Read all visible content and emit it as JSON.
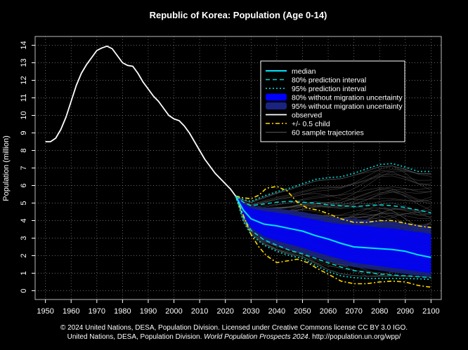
{
  "chart_data": {
    "type": "line",
    "title": "Republic of Korea: Population (Age 0-14)",
    "xlabel": "",
    "ylabel": "Population (million)",
    "xlim": [
      1946,
      2104
    ],
    "ylim": [
      -0.5,
      14.5
    ],
    "x_ticks": [
      1950,
      1960,
      1970,
      1980,
      1990,
      2000,
      2010,
      2020,
      2030,
      2040,
      2050,
      2060,
      2070,
      2080,
      2090,
      2100
    ],
    "y_ticks": [
      0,
      1,
      2,
      3,
      4,
      5,
      6,
      7,
      8,
      9,
      10,
      11,
      12,
      13,
      14
    ],
    "grid": true,
    "legend_position": "top-right",
    "legend": [
      {
        "key": "median",
        "label": "median"
      },
      {
        "key": "pi80",
        "label": "80% prediction interval"
      },
      {
        "key": "pi95",
        "label": "95% prediction interval"
      },
      {
        "key": "nomig80",
        "label": "80% without migration uncertainty"
      },
      {
        "key": "nomig95",
        "label": "95% without migration uncertainty"
      },
      {
        "key": "observed",
        "label": "observed"
      },
      {
        "key": "halfchild",
        "label": "+/- 0.5 child"
      },
      {
        "key": "samples",
        "label": "60 sample trajectories"
      }
    ],
    "colors": {
      "observed": "#ffffff",
      "median": "#00e5ff",
      "pi80": "#00cccc",
      "pi95": "#00cccc",
      "band80": "#0000ff",
      "band95": "#1a237e",
      "halfchild": "#ffd700",
      "samples": "#555555",
      "grid": "#888888"
    },
    "series": [
      {
        "name": "observed",
        "x": [
          1950,
          1952,
          1954,
          1956,
          1958,
          1960,
          1962,
          1964,
          1966,
          1968,
          1970,
          1972,
          1974,
          1976,
          1978,
          1980,
          1982,
          1984,
          1986,
          1988,
          1990,
          1992,
          1994,
          1996,
          1998,
          2000,
          2002,
          2004,
          2006,
          2008,
          2010,
          2012,
          2014,
          2016,
          2018,
          2020,
          2022,
          2024
        ],
        "values": [
          8.5,
          8.5,
          8.7,
          9.2,
          9.9,
          10.8,
          11.7,
          12.4,
          12.9,
          13.3,
          13.7,
          13.85,
          13.95,
          13.8,
          13.4,
          13.0,
          12.85,
          12.8,
          12.4,
          11.9,
          11.5,
          11.1,
          10.8,
          10.4,
          10.0,
          9.8,
          9.7,
          9.4,
          9.0,
          8.5,
          8.0,
          7.5,
          7.1,
          6.7,
          6.4,
          6.1,
          5.8,
          5.4
        ]
      },
      {
        "name": "median",
        "x": [
          2024,
          2027,
          2030,
          2035,
          2040,
          2045,
          2050,
          2055,
          2060,
          2065,
          2070,
          2075,
          2080,
          2085,
          2090,
          2095,
          2100
        ],
        "values": [
          5.4,
          4.6,
          4.1,
          3.8,
          3.7,
          3.55,
          3.4,
          3.15,
          2.95,
          2.7,
          2.5,
          2.45,
          2.4,
          2.35,
          2.25,
          2.05,
          1.9
        ]
      },
      {
        "name": "pi80_upper",
        "x": [
          2024,
          2027,
          2030,
          2035,
          2040,
          2045,
          2050,
          2055,
          2060,
          2065,
          2070,
          2075,
          2080,
          2085,
          2090,
          2095,
          2100
        ],
        "values": [
          5.4,
          5.05,
          4.85,
          4.95,
          5.05,
          5.1,
          5.05,
          5.0,
          4.9,
          4.85,
          4.8,
          4.85,
          4.9,
          4.85,
          4.75,
          4.6,
          4.45
        ]
      },
      {
        "name": "pi80_lower",
        "x": [
          2024,
          2027,
          2030,
          2035,
          2040,
          2045,
          2050,
          2055,
          2060,
          2065,
          2070,
          2075,
          2080,
          2085,
          2090,
          2095,
          2100
        ],
        "values": [
          5.4,
          4.2,
          3.45,
          2.9,
          2.6,
          2.3,
          2.1,
          1.85,
          1.6,
          1.35,
          1.15,
          1.05,
          0.95,
          0.9,
          0.85,
          0.8,
          0.75
        ]
      },
      {
        "name": "pi95_upper",
        "x": [
          2024,
          2027,
          2030,
          2035,
          2040,
          2045,
          2050,
          2055,
          2060,
          2065,
          2070,
          2075,
          2080,
          2085,
          2090,
          2095,
          2100
        ],
        "values": [
          5.4,
          5.2,
          5.1,
          5.4,
          5.65,
          5.85,
          6.1,
          6.35,
          6.45,
          6.5,
          6.7,
          6.95,
          7.2,
          7.25,
          7.05,
          6.8,
          6.8
        ]
      },
      {
        "name": "pi95_lower",
        "x": [
          2024,
          2027,
          2030,
          2035,
          2040,
          2045,
          2050,
          2055,
          2060,
          2065,
          2070,
          2075,
          2080,
          2085,
          2090,
          2095,
          2100
        ],
        "values": [
          5.4,
          3.95,
          3.2,
          2.6,
          2.25,
          2.0,
          1.85,
          1.45,
          1.1,
          0.85,
          0.75,
          0.7,
          0.7,
          0.7,
          0.7,
          0.68,
          0.65
        ]
      },
      {
        "name": "nomig80_upper",
        "x": [
          2024,
          2027,
          2030,
          2035,
          2040,
          2045,
          2050,
          2055,
          2060,
          2065,
          2070,
          2075,
          2080,
          2085,
          2090,
          2095,
          2100
        ],
        "values": [
          5.45,
          4.95,
          4.7,
          4.55,
          4.45,
          4.35,
          4.2,
          4.05,
          3.9,
          3.8,
          3.75,
          3.7,
          3.6,
          3.55,
          3.45,
          3.35,
          3.25
        ]
      },
      {
        "name": "nomig80_lower",
        "x": [
          2024,
          2027,
          2030,
          2035,
          2040,
          2045,
          2050,
          2055,
          2060,
          2065,
          2070,
          2075,
          2080,
          2085,
          2090,
          2095,
          2100
        ],
        "values": [
          5.35,
          4.3,
          3.6,
          3.1,
          2.85,
          2.65,
          2.45,
          2.2,
          2.0,
          1.8,
          1.6,
          1.5,
          1.4,
          1.3,
          1.2,
          1.1,
          1.0
        ]
      },
      {
        "name": "nomig95_upper",
        "x": [
          2024,
          2027,
          2030,
          2035,
          2040,
          2045,
          2050,
          2055,
          2060,
          2065,
          2070,
          2075,
          2080,
          2085,
          2090,
          2095,
          2100
        ],
        "values": [
          5.45,
          5.05,
          4.85,
          4.75,
          4.7,
          4.6,
          4.5,
          4.35,
          4.2,
          4.15,
          4.1,
          4.05,
          4.0,
          3.95,
          3.85,
          3.75,
          3.7
        ]
      },
      {
        "name": "nomig95_lower",
        "x": [
          2024,
          2027,
          2030,
          2035,
          2040,
          2045,
          2050,
          2055,
          2060,
          2065,
          2070,
          2075,
          2080,
          2085,
          2090,
          2095,
          2100
        ],
        "values": [
          5.35,
          4.15,
          3.4,
          2.85,
          2.55,
          2.35,
          2.15,
          1.9,
          1.7,
          1.5,
          1.35,
          1.25,
          1.15,
          1.05,
          0.95,
          0.85,
          0.8
        ]
      },
      {
        "name": "halfchild_upper",
        "x": [
          2024,
          2027,
          2030,
          2033,
          2036,
          2040,
          2044,
          2048,
          2052,
          2056,
          2060,
          2065,
          2070,
          2075,
          2080,
          2085,
          2090,
          2095,
          2100
        ],
        "values": [
          5.4,
          5.3,
          5.25,
          5.45,
          5.85,
          5.95,
          5.7,
          5.05,
          4.7,
          4.6,
          4.4,
          4.1,
          3.9,
          3.9,
          4.0,
          4.0,
          3.85,
          3.7,
          3.6
        ]
      },
      {
        "name": "halfchild_lower",
        "x": [
          2024,
          2027,
          2030,
          2033,
          2036,
          2040,
          2044,
          2048,
          2052,
          2056,
          2060,
          2065,
          2070,
          2075,
          2080,
          2085,
          2090,
          2095,
          2100
        ],
        "values": [
          5.4,
          4.3,
          3.2,
          2.5,
          2.0,
          1.6,
          1.7,
          1.8,
          1.6,
          1.25,
          0.95,
          0.55,
          0.4,
          0.4,
          0.5,
          0.55,
          0.5,
          0.3,
          0.2
        ]
      }
    ]
  },
  "footer": {
    "line1": "© 2024 United Nations, DESA, Population Division. Licensed under Creative Commons license CC BY 3.0 IGO.",
    "line2_prefix": "United Nations, DESA, Population Division. ",
    "line2_italic": "World Population Prospects 2024",
    "line2_suffix": ". http://population.un.org/wpp/"
  }
}
